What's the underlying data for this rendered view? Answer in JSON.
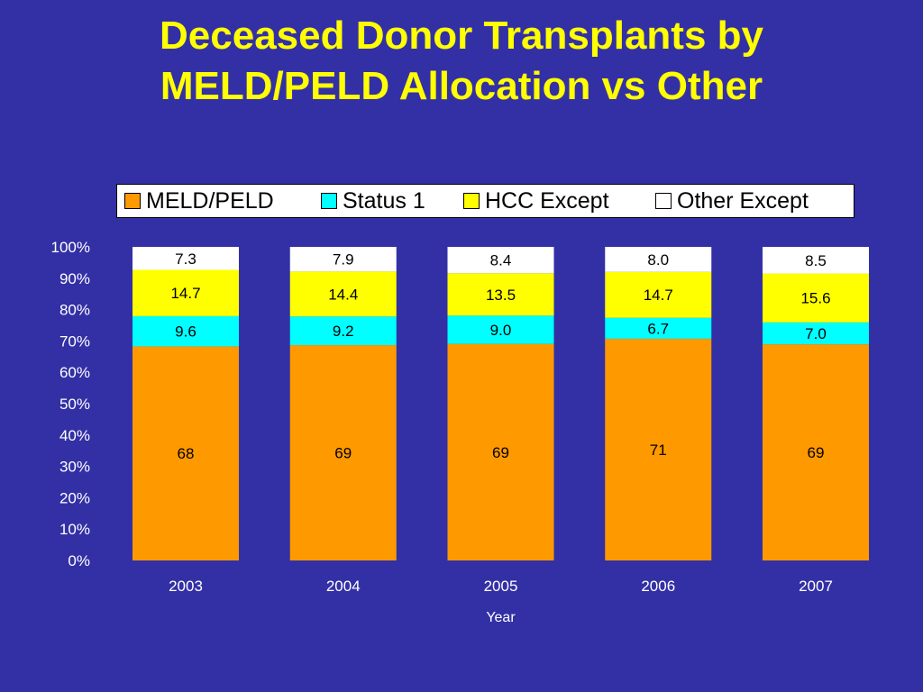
{
  "title_lines": [
    "Deceased Donor Transplants by",
    "MELD/PELD Allocation vs Other"
  ],
  "chart_data": {
    "type": "bar",
    "stacked": true,
    "percent_stacked": true,
    "title": "Deceased Donor Transplants by MELD/PELD Allocation vs Other",
    "xlabel": "Year",
    "ylabel": "",
    "categories": [
      "2003",
      "2004",
      "2005",
      "2006",
      "2007"
    ],
    "y_ticks": [
      "0%",
      "10%",
      "20%",
      "30%",
      "40%",
      "50%",
      "60%",
      "70%",
      "80%",
      "90%",
      "100%"
    ],
    "ylim": [
      0,
      100
    ],
    "grid": false,
    "legend_position": "top",
    "series": [
      {
        "name": "MELD/PELD",
        "color": "#ff9900",
        "values": [
          68,
          69,
          69,
          71,
          69
        ],
        "labels": [
          "68",
          "69",
          "69",
          "71",
          "69"
        ]
      },
      {
        "name": "Status 1",
        "color": "#00ffff",
        "values": [
          9.6,
          9.2,
          9.0,
          6.7,
          7.0
        ],
        "labels": [
          "9.6",
          "9.2",
          "9.0",
          "6.7",
          "7.0"
        ]
      },
      {
        "name": "HCC Except",
        "color": "#ffff00",
        "values": [
          14.7,
          14.4,
          13.5,
          14.7,
          15.6
        ],
        "labels": [
          "14.7",
          "14.4",
          "13.5",
          "14.7",
          "15.6"
        ]
      },
      {
        "name": "Other Except",
        "color": "#ffffff",
        "values": [
          7.3,
          7.9,
          8.4,
          8.0,
          8.5
        ],
        "labels": [
          "7.3",
          "7.9",
          "8.4",
          "8.0",
          "8.5"
        ]
      }
    ]
  }
}
